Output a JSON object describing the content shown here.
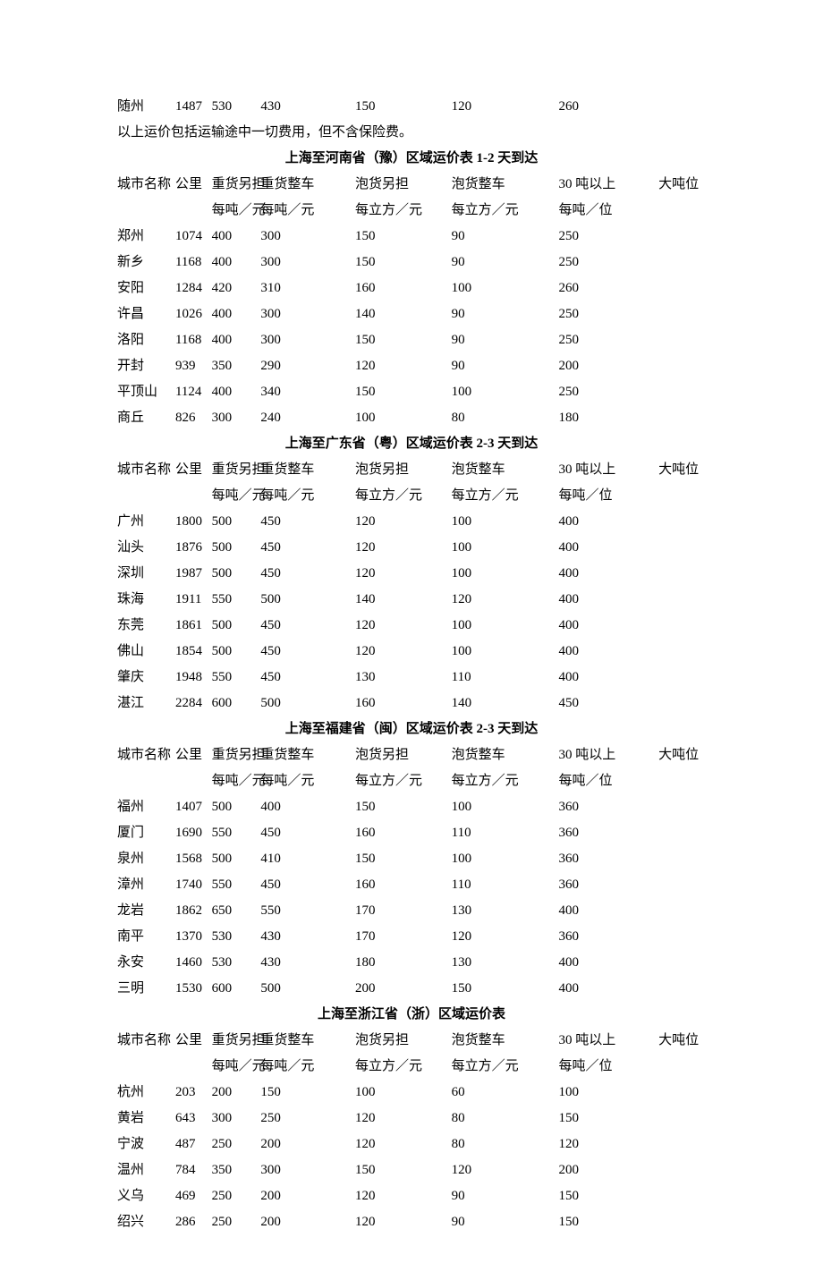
{
  "intro_row": {
    "city": "随州",
    "km": "1487",
    "v1": "530",
    "v2": "430",
    "v3": "150",
    "v4": "120",
    "v5": "260",
    "v6": ""
  },
  "note": "以上运价包括运输途中一切费用，但不含保险费。",
  "header_top": [
    "城市名称",
    "公里",
    "重货另担",
    "重货整车",
    "泡货另担",
    "泡货整车",
    "30 吨以上",
    "大吨位"
  ],
  "header_bot": [
    "",
    "",
    "每吨／元",
    "每吨／元",
    "每立方／元",
    "每立方／元",
    "每吨／位",
    ""
  ],
  "sections": [
    {
      "title": "上海至河南省（豫）区域运价表 1-2 天到达",
      "rows": [
        {
          "city": "郑州",
          "km": "1074",
          "v1": "400",
          "v2": "300",
          "v3": "150",
          "v4": "90",
          "v5": "250",
          "v6": ""
        },
        {
          "city": "新乡",
          "km": "1168",
          "v1": "400",
          "v2": "300",
          "v3": "150",
          "v4": "90",
          "v5": "250",
          "v6": ""
        },
        {
          "city": "安阳",
          "km": "1284",
          "v1": "420",
          "v2": "310",
          "v3": "160",
          "v4": "100",
          "v5": "260",
          "v6": ""
        },
        {
          "city": "许昌",
          "km": "1026",
          "v1": "400",
          "v2": "300",
          "v3": "140",
          "v4": "90",
          "v5": "250",
          "v6": ""
        },
        {
          "city": "洛阳",
          "km": "1168",
          "v1": "400",
          "v2": "300",
          "v3": "150",
          "v4": "90",
          "v5": "250",
          "v6": ""
        },
        {
          "city": "开封",
          "km": "939",
          "v1": "350",
          "v2": "290",
          "v3": "120",
          "v4": "90",
          "v5": "200",
          "v6": ""
        },
        {
          "city": "平顶山",
          "km": "1124",
          "v1": "400",
          "v2": "340",
          "v3": "150",
          "v4": "100",
          "v5": "250",
          "v6": ""
        },
        {
          "city": "商丘",
          "km": "826",
          "v1": "300",
          "v2": "240",
          "v3": "100",
          "v4": "80",
          "v5": "180",
          "v6": ""
        }
      ]
    },
    {
      "title": "上海至广东省（粤）区域运价表 2-3 天到达",
      "rows": [
        {
          "city": "广州",
          "km": "1800",
          "v1": "500",
          "v2": "450",
          "v3": "120",
          "v4": "100",
          "v5": "400",
          "v6": ""
        },
        {
          "city": "汕头",
          "km": "1876",
          "v1": "500",
          "v2": "450",
          "v3": "120",
          "v4": "100",
          "v5": "400",
          "v6": ""
        },
        {
          "city": "深圳",
          "km": "1987",
          "v1": "500",
          "v2": "450",
          "v3": "120",
          "v4": "100",
          "v5": "400",
          "v6": ""
        },
        {
          "city": "珠海",
          "km": "1911",
          "v1": "550",
          "v2": "500",
          "v3": "140",
          "v4": "120",
          "v5": "400",
          "v6": ""
        },
        {
          "city": "东莞",
          "km": "1861",
          "v1": "500",
          "v2": "450",
          "v3": "120",
          "v4": "100",
          "v5": "400",
          "v6": ""
        },
        {
          "city": "佛山",
          "km": "1854",
          "v1": "500",
          "v2": "450",
          "v3": "120",
          "v4": "100",
          "v5": "400",
          "v6": ""
        },
        {
          "city": "肇庆",
          "km": "1948",
          "v1": "550",
          "v2": "450",
          "v3": "130",
          "v4": "110",
          "v5": "400",
          "v6": ""
        },
        {
          "city": "湛江",
          "km": "2284",
          "v1": "600",
          "v2": "500",
          "v3": "160",
          "v4": "140",
          "v5": "450",
          "v6": ""
        }
      ]
    },
    {
      "title": "上海至福建省（闽）区域运价表 2-3 天到达",
      "rows": [
        {
          "city": "福州",
          "km": "1407",
          "v1": "500",
          "v2": "400",
          "v3": "150",
          "v4": "100",
          "v5": "360",
          "v6": ""
        },
        {
          "city": "厦门",
          "km": "1690",
          "v1": "550",
          "v2": "450",
          "v3": "160",
          "v4": "110",
          "v5": "360",
          "v6": ""
        },
        {
          "city": "泉州",
          "km": "1568",
          "v1": "500",
          "v2": "410",
          "v3": "150",
          "v4": "100",
          "v5": "360",
          "v6": ""
        },
        {
          "city": "漳州",
          "km": "1740",
          "v1": "550",
          "v2": "450",
          "v3": "160",
          "v4": "110",
          "v5": "360",
          "v6": ""
        },
        {
          "city": "龙岩",
          "km": "1862",
          "v1": "650",
          "v2": "550",
          "v3": "170",
          "v4": "130",
          "v5": "400",
          "v6": ""
        },
        {
          "city": "南平",
          "km": "1370",
          "v1": "530",
          "v2": "430",
          "v3": "170",
          "v4": "120",
          "v5": "360",
          "v6": ""
        },
        {
          "city": "永安",
          "km": "1460",
          "v1": "530",
          "v2": "430",
          "v3": "180",
          "v4": "130",
          "v5": "400",
          "v6": ""
        },
        {
          "city": "三明",
          "km": "1530",
          "v1": "600",
          "v2": "500",
          "v3": "200",
          "v4": "150",
          "v5": "400",
          "v6": ""
        }
      ]
    },
    {
      "title": "上海至浙江省（浙）区域运价表",
      "rows": [
        {
          "city": "杭州",
          "km": "203",
          "v1": "200",
          "v2": "150",
          "v3": "100",
          "v4": "60",
          "v5": "100",
          "v6": ""
        },
        {
          "city": "黄岩",
          "km": "643",
          "v1": "300",
          "v2": "250",
          "v3": "120",
          "v4": "80",
          "v5": "150",
          "v6": ""
        },
        {
          "city": "宁波",
          "km": "487",
          "v1": "250",
          "v2": "200",
          "v3": "120",
          "v4": "80",
          "v5": "120",
          "v6": ""
        },
        {
          "city": "温州",
          "km": "784",
          "v1": "350",
          "v2": "300",
          "v3": "150",
          "v4": "120",
          "v5": "200",
          "v6": ""
        },
        {
          "city": "义乌",
          "km": "469",
          "v1": "250",
          "v2": "200",
          "v3": "120",
          "v4": "90",
          "v5": "150",
          "v6": ""
        },
        {
          "city": "绍兴",
          "km": "286",
          "v1": "250",
          "v2": "200",
          "v3": "120",
          "v4": "90",
          "v5": "150",
          "v6": ""
        }
      ]
    }
  ]
}
